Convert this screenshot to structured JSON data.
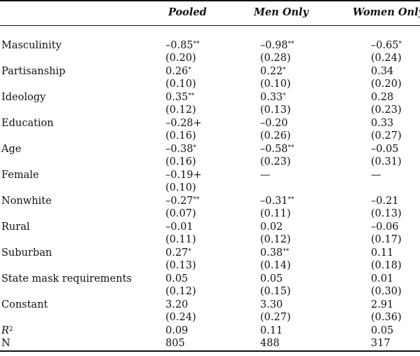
{
  "header": {
    "pooled": "Pooled",
    "men_only": "Men Only",
    "women_only": "Women Only"
  },
  "rows": [
    {
      "label": "Masculinity",
      "coef": [
        "–0.85**",
        "–0.98**",
        "–0.65*"
      ],
      "se": [
        "(0.20)",
        "(0.28)",
        "(0.24)"
      ]
    },
    {
      "label": "Partisanship",
      "coef": [
        "0.26*",
        "0.22*",
        "0.34"
      ],
      "se": [
        "(0.10)",
        "(0.10)",
        "(0.20)"
      ]
    },
    {
      "label": "Ideology",
      "coef": [
        "0.35**",
        "0.33*",
        "0.28"
      ],
      "se": [
        "(0.12)",
        "(0.13)",
        "(0.23)"
      ]
    },
    {
      "label": "Education",
      "coef": [
        "–0.28+",
        "–0.20",
        "0.33"
      ],
      "se": [
        "(0.16)",
        "(0.26)",
        "(0.27)"
      ]
    },
    {
      "label": "Age",
      "coef": [
        "–0.38*",
        "–0.58**",
        "–0.05"
      ],
      "se": [
        "(0.16)",
        "(0.23)",
        "(0.31)"
      ]
    },
    {
      "label": "Female",
      "coef": [
        "–0.19+",
        "—",
        "—"
      ],
      "se": [
        "(0.10)",
        "",
        ""
      ]
    },
    {
      "label": "Nonwhite",
      "coef": [
        "–0.27**",
        "–0.31**",
        "–0.21"
      ],
      "se": [
        "(0.07)",
        "(0.11)",
        "(0.13)"
      ]
    },
    {
      "label": "Rural",
      "coef": [
        "–0.01",
        "0.02",
        "–0.06"
      ],
      "se": [
        "(0.11)",
        "(0.12)",
        "(0.17)"
      ]
    },
    {
      "label": "Suburban",
      "coef": [
        "0.27*",
        "0.38**",
        "0.11"
      ],
      "se": [
        "(0.13)",
        "(0.14)",
        "(0.18)"
      ]
    },
    {
      "label": "State mask requirements",
      "coef": [
        "0.05",
        "0.05",
        "0.01"
      ],
      "se": [
        "(0.12)",
        "(0.15)",
        "(0.30)"
      ]
    },
    {
      "label": "Constant",
      "coef": [
        "3.20",
        "3.30",
        "2.91"
      ],
      "se": [
        "(0.24)",
        "(0.27)",
        "(0.36)"
      ]
    }
  ],
  "r2": {
    "label": "R",
    "sup": "2",
    "values": [
      "0.09",
      "0.11",
      "0.05"
    ]
  },
  "n": {
    "label": "N",
    "values": [
      "805",
      "488",
      "317"
    ]
  }
}
